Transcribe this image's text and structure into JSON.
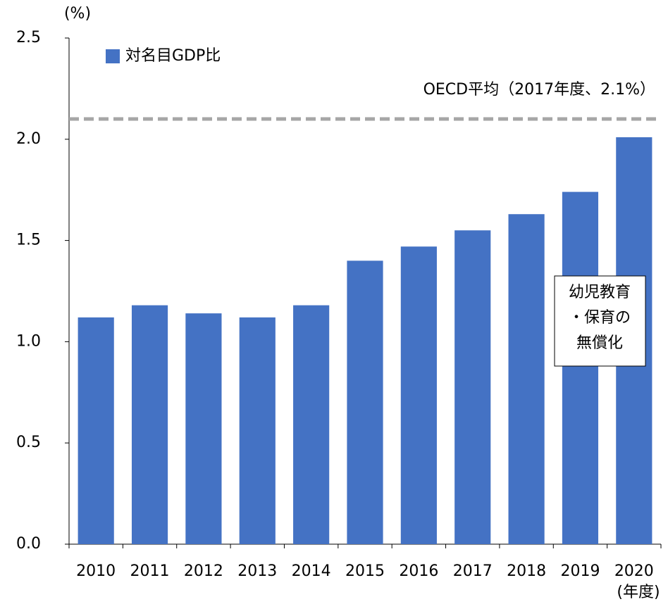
{
  "chart_data": {
    "type": "bar",
    "y_unit_label": "(%)",
    "x_label": "(年度)",
    "categories": [
      "2010",
      "2011",
      "2012",
      "2013",
      "2014",
      "2015",
      "2016",
      "2017",
      "2018",
      "2019",
      "2020"
    ],
    "series": [
      {
        "name": "対名目GDP比",
        "color": "#4472c4",
        "values": [
          1.12,
          1.18,
          1.14,
          1.12,
          1.18,
          1.4,
          1.47,
          1.55,
          1.63,
          1.74,
          2.01
        ]
      }
    ],
    "ylim": [
      0,
      2.5
    ],
    "yticks": [
      {
        "value": 0,
        "label": "0.0"
      },
      0.5,
      {
        "value": 1,
        "label": "1.0"
      },
      1.5,
      {
        "value": 2,
        "label": "2.0"
      },
      2.5
    ],
    "reference_line": {
      "label": "OECD平均（2017年度、2.1%）",
      "value": 2.1,
      "color": "#a6a6a6"
    },
    "annotation": {
      "lines": [
        "幼児教育",
        "・保育の",
        "無償化"
      ]
    }
  }
}
